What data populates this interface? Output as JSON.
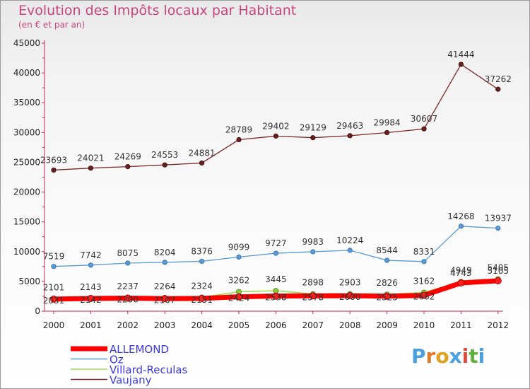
{
  "header": {
    "title": "Evolution des Impôts locaux par Habitant",
    "subtitle": "(en € et par an)"
  },
  "brand": {
    "logo_text": "Proxiti"
  },
  "chart_data": {
    "type": "line",
    "title": "Evolution des Impôts locaux par Habitant",
    "subtitle": "(en € et par an)",
    "xlabel": "",
    "ylabel": "",
    "ylim": [
      0,
      45000
    ],
    "yticks": [
      0,
      5000,
      10000,
      15000,
      20000,
      25000,
      30000,
      35000,
      40000,
      45000
    ],
    "grid": false,
    "legend_position": "bottom-left",
    "categories": [
      "2000",
      "2001",
      "2002",
      "2003",
      "2004",
      "2005",
      "2006",
      "2007",
      "2008",
      "2009",
      "2010",
      "2011",
      "2012"
    ],
    "series": [
      {
        "name": "ALLEMOND",
        "color": "#ff0000",
        "values": [
          2031,
          2142,
          2200,
          2107,
          2151,
          2424,
          2538,
          2578,
          2600,
          2525,
          2662,
          4743,
          5105
        ]
      },
      {
        "name": "Oz",
        "color": "#5b9bd5",
        "values": [
          7519,
          7742,
          8075,
          8204,
          8376,
          9099,
          9727,
          9983,
          10224,
          8544,
          8331,
          14268,
          13937
        ]
      },
      {
        "name": "Villard-Reculas",
        "color": "#99dd44",
        "values": [
          2101,
          2143,
          2237,
          2264,
          2324,
          3262,
          3445,
          2898,
          2903,
          2826,
          3162,
          4949,
          5405
        ]
      },
      {
        "name": "Vaujany",
        "color": "#7a2a2a",
        "values": [
          23693,
          24021,
          24269,
          24553,
          24881,
          28789,
          29402,
          29129,
          29463,
          29984,
          30607,
          41444,
          37262
        ]
      }
    ]
  }
}
